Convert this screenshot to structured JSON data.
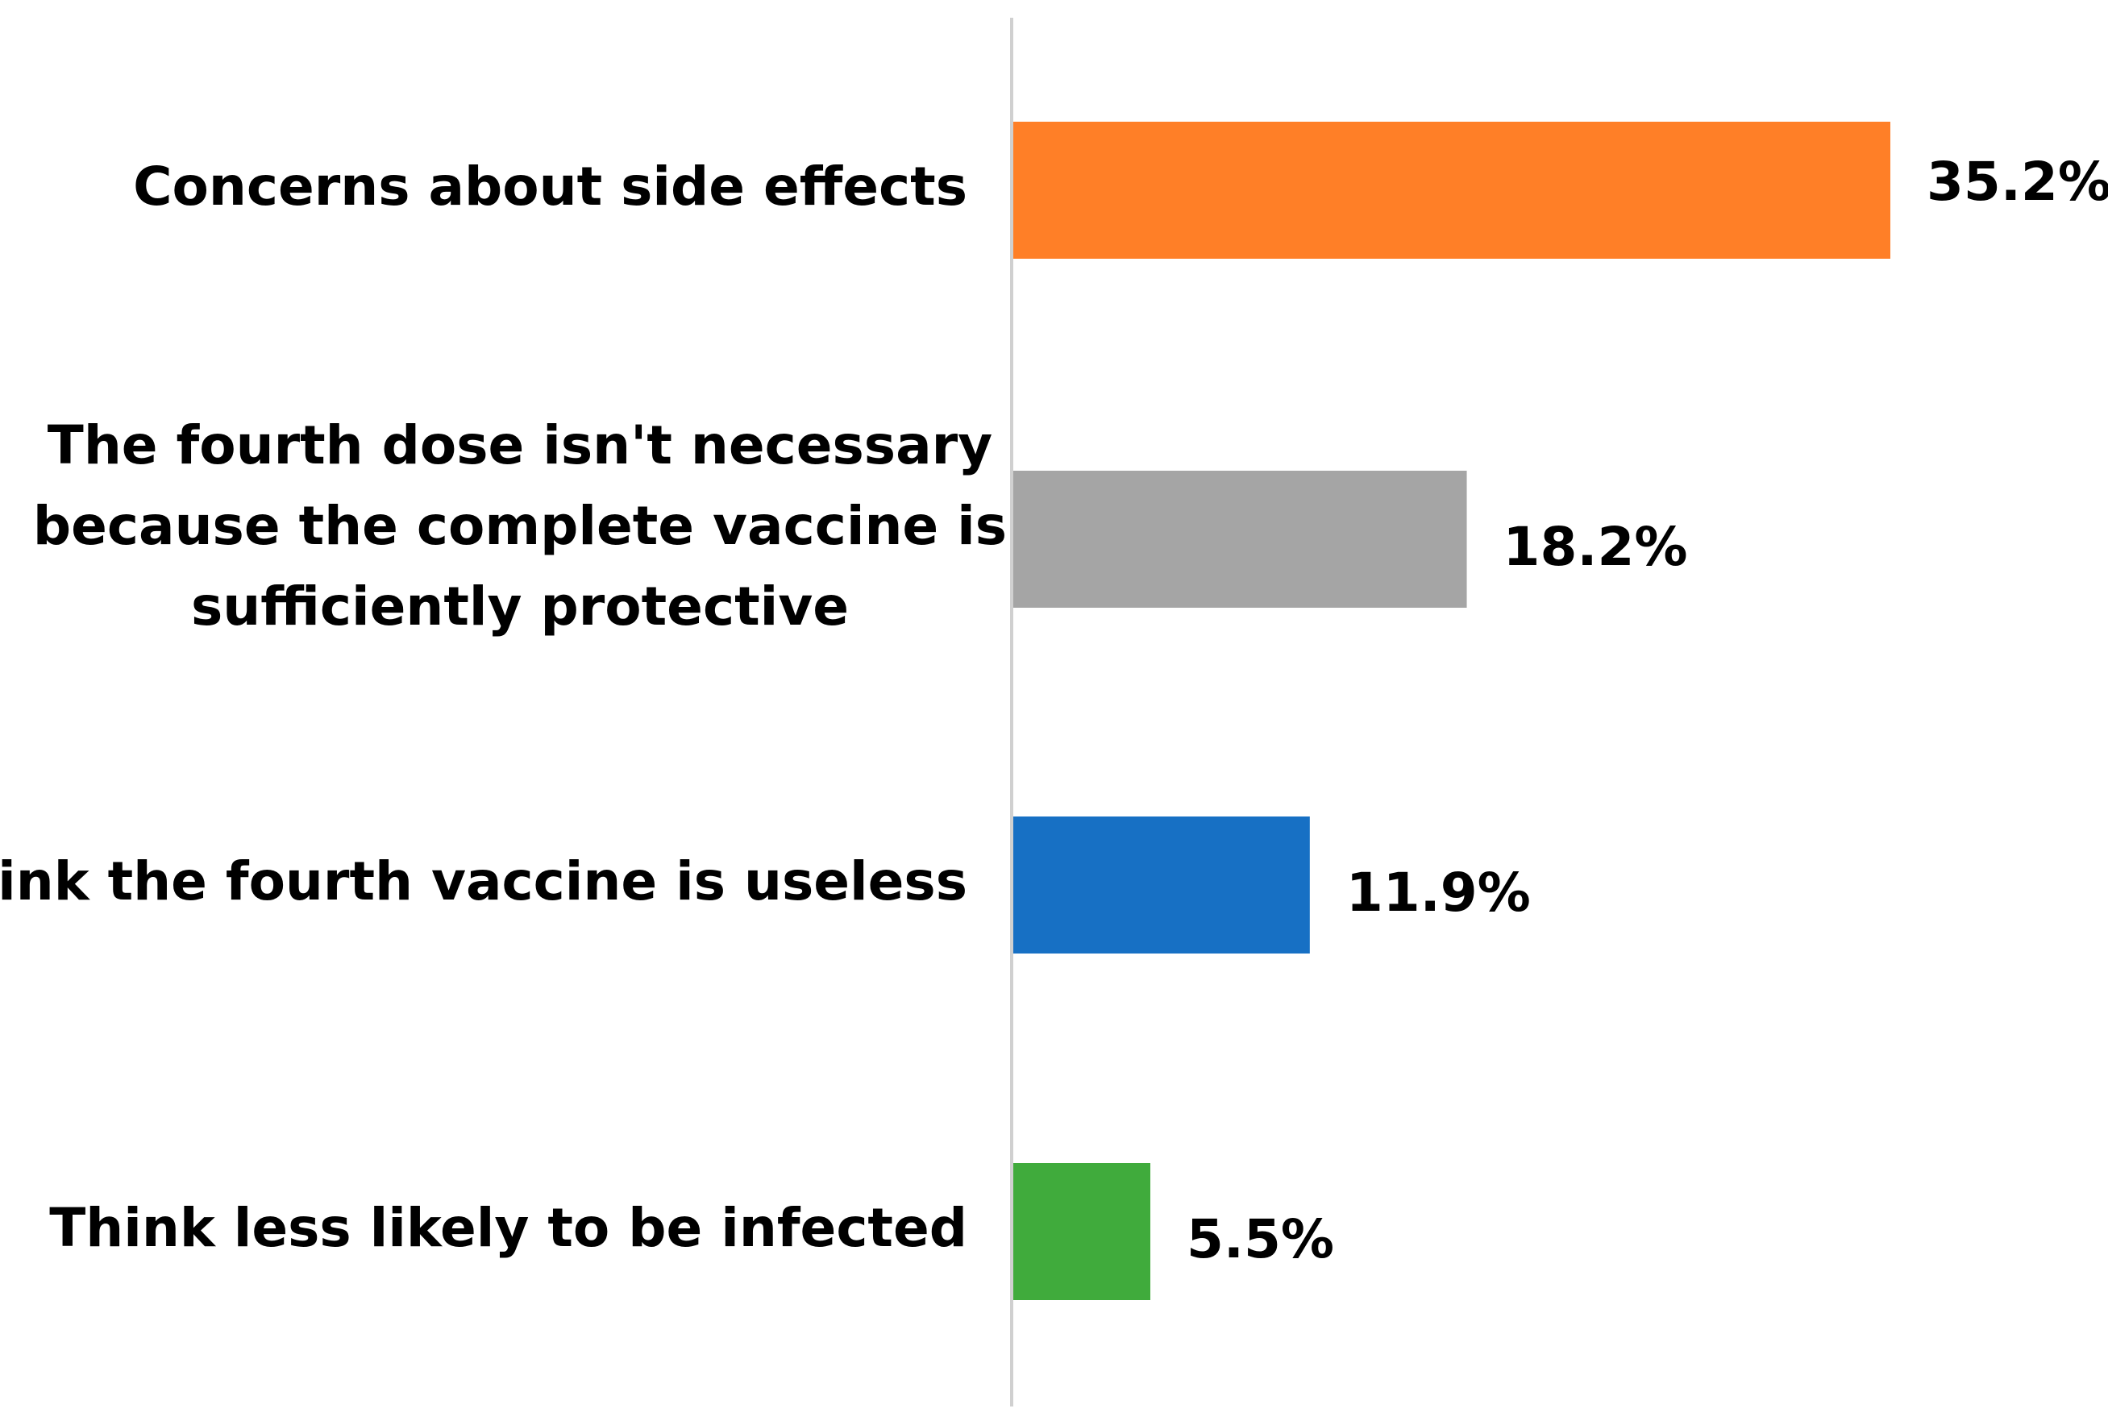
{
  "chart_data": {
    "type": "bar",
    "orientation": "horizontal",
    "title": "",
    "xlabel": "",
    "ylabel": "",
    "xlim": [
      0,
      38
    ],
    "grid": false,
    "legend": "none",
    "categories": [
      [
        "Concerns about side effects"
      ],
      [
        "The fourth dose isn't necessary",
        "because the complete vaccine is",
        "sufficiently protective"
      ],
      [
        "Think the fourth vaccine is useless"
      ],
      [
        "Think less likely to be infected"
      ]
    ],
    "values": [
      35.2,
      18.2,
      11.9,
      5.5
    ],
    "value_labels": [
      "35.2%",
      "18.2%",
      "11.9%",
      "5.5%"
    ],
    "colors": [
      "#FF7F27",
      "#A5A5A5",
      "#1770C4",
      "#40AB3C"
    ],
    "axis_color": "#D0D0D0"
  }
}
